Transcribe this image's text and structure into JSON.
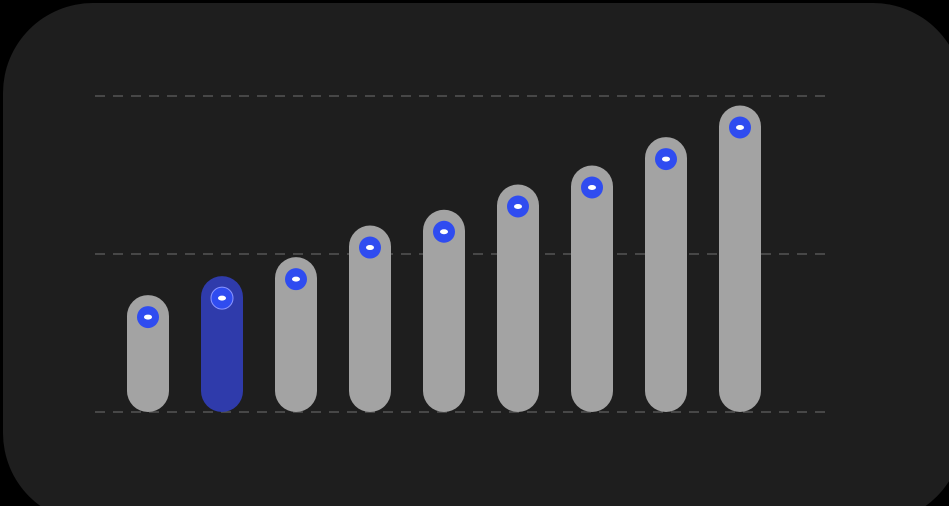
{
  "chart_data": {
    "type": "bar",
    "categories": [
      null,
      null,
      null,
      null,
      null,
      null,
      null,
      null,
      null
    ],
    "values": [
      37,
      43,
      49,
      59,
      64,
      72,
      78,
      87,
      97
    ],
    "color": "#a3a3a3",
    "highlight_color": "#2f3bab",
    "highlight_index": 1,
    "marker_color": "#2f4cf0",
    "ylim": [
      0,
      100
    ],
    "yticks": [
      0,
      50,
      100
    ],
    "grid": true
  }
}
